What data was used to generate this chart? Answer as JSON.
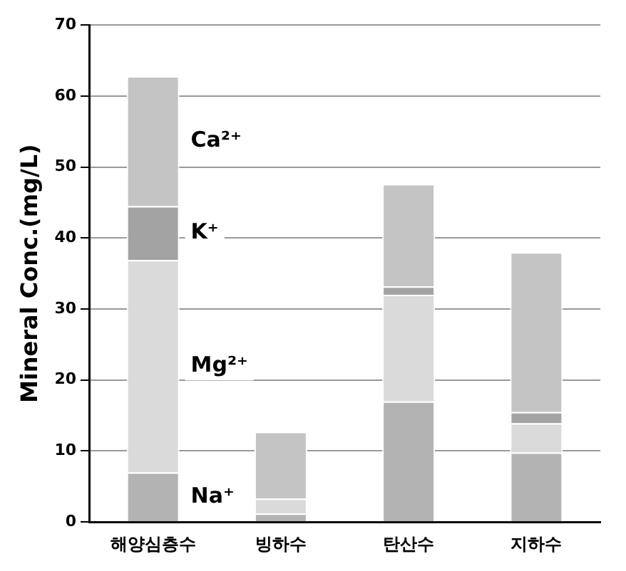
{
  "chart_data": {
    "type": "bar",
    "stacked": true,
    "ylabel": "Mineral Conc.(mg/L)",
    "categories": [
      "해양심층수",
      "빙하수",
      "탄산수",
      "지하수"
    ],
    "series": [
      {
        "name": "Na⁺",
        "color": "#b3b3b3",
        "values": [
          7.0,
          1.2,
          17.0,
          9.8
        ]
      },
      {
        "name": "Mg²⁺",
        "color": "#dadada",
        "values": [
          29.9,
          2.1,
          15.0,
          4.1
        ]
      },
      {
        "name": "K⁺",
        "color": "#a3a3a3",
        "values": [
          7.6,
          0,
          1.2,
          1.6
        ]
      },
      {
        "name": "Ca²⁺",
        "color": "#c4c4c4",
        "values": [
          18.3,
          9.4,
          14.4,
          22.5
        ]
      }
    ],
    "ylim": [
      0,
      70
    ],
    "yticks": [
      0,
      10,
      20,
      30,
      40,
      50,
      60,
      70
    ],
    "grid": "y",
    "legend": false
  }
}
